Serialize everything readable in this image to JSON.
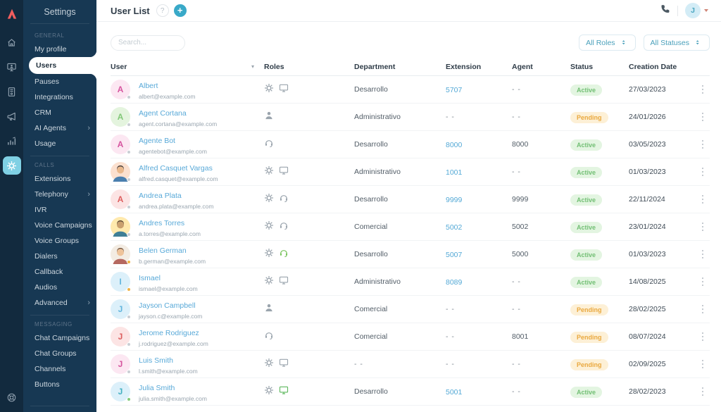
{
  "colors": {
    "accent_teal": "#39a9c8",
    "sidebar_bg": "#173853",
    "rail_bg": "#122a3e",
    "logo_coral": "#f15e5e",
    "link_blue": "#58a9d8",
    "active_badge_bg": "#e3f5e1",
    "active_badge_fg": "#72bf74",
    "pending_badge_bg": "#fdf0d6",
    "pending_badge_fg": "#e9a83e"
  },
  "rail": {
    "items": [
      {
        "icon": "home-icon",
        "active": false
      },
      {
        "icon": "desktop-user-icon",
        "active": false
      },
      {
        "icon": "document-icon",
        "active": false
      },
      {
        "icon": "megaphone-icon",
        "active": false
      },
      {
        "icon": "bar-chart-icon",
        "active": false
      },
      {
        "icon": "gear-icon",
        "active": true
      }
    ],
    "bottom_icon": "life-buoy-icon"
  },
  "sidebar": {
    "title": "Settings",
    "sections": [
      {
        "label": "GENERAL",
        "items": [
          {
            "label": "My profile"
          },
          {
            "label": "Users",
            "active": true
          },
          {
            "label": "Pauses"
          },
          {
            "label": "Integrations"
          },
          {
            "label": "CRM"
          },
          {
            "label": "AI Agents",
            "chevron": true
          },
          {
            "label": "Usage"
          }
        ]
      },
      {
        "label": "CALLS",
        "items": [
          {
            "label": "Extensions"
          },
          {
            "label": "Telephony",
            "chevron": true
          },
          {
            "label": "IVR"
          },
          {
            "label": "Voice Campaigns"
          },
          {
            "label": "Voice Groups"
          },
          {
            "label": "Dialers"
          },
          {
            "label": "Callback"
          },
          {
            "label": "Audios"
          },
          {
            "label": "Advanced",
            "chevron": true
          }
        ]
      },
      {
        "label": "MESSAGING",
        "items": [
          {
            "label": "Chat Campaigns"
          },
          {
            "label": "Chat Groups"
          },
          {
            "label": "Channels"
          },
          {
            "label": "Buttons"
          }
        ]
      }
    ]
  },
  "header": {
    "title": "User List",
    "help_label": "?",
    "add_label": "+",
    "avatar_initial": "J"
  },
  "toolbar": {
    "search_placeholder": "Search...",
    "filters": [
      {
        "label": "All Roles"
      },
      {
        "label": "All Statuses"
      }
    ]
  },
  "table": {
    "columns": [
      "User",
      "Roles",
      "Department",
      "Extension",
      "Agent",
      "Status",
      "Creation Date"
    ],
    "rows": [
      {
        "name": "Albert",
        "email": "albert@example.com",
        "avatar": {
          "type": "initial",
          "initial": "A",
          "bg": "#fce7f2",
          "fg": "#d6559f"
        },
        "dot": "#c9ced4",
        "roles": [
          {
            "icon": "gear",
            "color": "#9aa4ad"
          },
          {
            "icon": "monitor",
            "color": "#9aa4ad"
          }
        ],
        "department": "Desarrollo",
        "extension": "5707",
        "agent": "- -",
        "status": "Active",
        "date": "27/03/2023"
      },
      {
        "name": "Agent Cortana",
        "email": "agent.cortana@example.com",
        "avatar": {
          "type": "initial",
          "initial": "A",
          "bg": "#e4f4de",
          "fg": "#82c878"
        },
        "dot": "#c9ced4",
        "roles": [
          {
            "icon": "person",
            "color": "#9aa4ad"
          }
        ],
        "department": "Administrativo",
        "extension": "- -",
        "agent": "- -",
        "status": "Pending",
        "date": "24/01/2026"
      },
      {
        "name": "Agente Bot",
        "email": "agentebot@example.com",
        "avatar": {
          "type": "initial",
          "initial": "A",
          "bg": "#fce7f2",
          "fg": "#d6559f"
        },
        "dot": "#c9ced4",
        "roles": [
          {
            "icon": "headset",
            "color": "#9aa4ad"
          }
        ],
        "department": "Desarrollo",
        "extension": "8000",
        "agent": "8000",
        "status": "Active",
        "date": "03/05/2023"
      },
      {
        "name": "Alfred Casquet Vargas",
        "email": "alfred.casquet@example.com",
        "avatar": {
          "type": "photo",
          "bg": "#fbe0cf",
          "hair": "#2f2a28",
          "skin": "#eab98d",
          "shirt": "#4a7fae"
        },
        "dot": "#c9ced4",
        "roles": [
          {
            "icon": "gear",
            "color": "#9aa4ad"
          },
          {
            "icon": "monitor",
            "color": "#9aa4ad"
          }
        ],
        "department": "Administrativo",
        "extension": "1001",
        "agent": "- -",
        "status": "Active",
        "date": "01/03/2023"
      },
      {
        "name": "Andrea Plata",
        "email": "andrea.plata@example.com",
        "avatar": {
          "type": "initial",
          "initial": "A",
          "bg": "#fce4e4",
          "fg": "#dd5f5f"
        },
        "dot": "#c9ced4",
        "roles": [
          {
            "icon": "gear",
            "color": "#9aa4ad"
          },
          {
            "icon": "headset",
            "color": "#9aa4ad"
          }
        ],
        "department": "Desarrollo",
        "extension": "9999",
        "agent": "9999",
        "status": "Active",
        "date": "22/11/2024"
      },
      {
        "name": "Andres Torres",
        "email": "a.torres@example.com",
        "avatar": {
          "type": "photo",
          "bg": "#ffe9ad",
          "hair": "#4a3526",
          "skin": "#caa06e",
          "shirt": "#3f7f96"
        },
        "dot": "#c9ced4",
        "roles": [
          {
            "icon": "gear",
            "color": "#9aa4ad"
          },
          {
            "icon": "headset",
            "color": "#9aa4ad"
          }
        ],
        "department": "Comercial",
        "extension": "5002",
        "agent": "5002",
        "status": "Active",
        "date": "23/01/2024"
      },
      {
        "name": "Belen German",
        "email": "b.german@example.com",
        "avatar": {
          "type": "photo",
          "bg": "#f3ece3",
          "hair": "#6b4a33",
          "skin": "#eec39a",
          "shirt": "#b5685f"
        },
        "dot": "#f0b344",
        "roles": [
          {
            "icon": "gear",
            "color": "#9aa4ad"
          },
          {
            "icon": "headset",
            "color": "#77c25b"
          }
        ],
        "department": "Desarrollo",
        "extension": "5007",
        "agent": "5000",
        "status": "Active",
        "date": "01/03/2023"
      },
      {
        "name": "Ismael",
        "email": "ismael@example.com",
        "avatar": {
          "type": "initial",
          "initial": "I",
          "bg": "#dcf0fa",
          "fg": "#63b6dd"
        },
        "dot": "#f0b344",
        "roles": [
          {
            "icon": "gear",
            "color": "#9aa4ad"
          },
          {
            "icon": "monitor",
            "color": "#9aa4ad"
          }
        ],
        "department": "Administrativo",
        "extension": "8089",
        "agent": "- -",
        "status": "Active",
        "date": "14/08/2025"
      },
      {
        "name": "Jayson Campbell",
        "email": "jayson.c@example.com",
        "avatar": {
          "type": "initial",
          "initial": "J",
          "bg": "#dcf0fa",
          "fg": "#63b6dd"
        },
        "dot": "#c9ced4",
        "roles": [
          {
            "icon": "person",
            "color": "#9aa4ad"
          }
        ],
        "department": "Comercial",
        "extension": "- -",
        "agent": "- -",
        "status": "Pending",
        "date": "28/02/2025"
      },
      {
        "name": "Jerome Rodriguez",
        "email": "j.rodriguez@example.com",
        "avatar": {
          "type": "initial",
          "initial": "J",
          "bg": "#fce4e4",
          "fg": "#dd5f5f"
        },
        "dot": "#c9ced4",
        "roles": [
          {
            "icon": "headset",
            "color": "#9aa4ad"
          }
        ],
        "department": "Comercial",
        "extension": "- -",
        "agent": "8001",
        "status": "Pending",
        "date": "08/07/2024"
      },
      {
        "name": "Luis Smith",
        "email": "l.smith@example.com",
        "avatar": {
          "type": "initial",
          "initial": "J",
          "bg": "#fce7f2",
          "fg": "#d6559f"
        },
        "dot": "#c9ced4",
        "roles": [
          {
            "icon": "gear",
            "color": "#9aa4ad"
          },
          {
            "icon": "monitor",
            "color": "#9aa4ad"
          }
        ],
        "department": "- -",
        "extension": "- -",
        "agent": "- -",
        "status": "Pending",
        "date": "02/09/2025"
      },
      {
        "name": "Julia Smith",
        "email": "julia.smith@example.com",
        "avatar": {
          "type": "initial",
          "initial": "J",
          "bg": "#dcf0fa",
          "fg": "#45b0c2"
        },
        "dot": "#84ca7a",
        "roles": [
          {
            "icon": "gear",
            "color": "#9aa4ad"
          },
          {
            "icon": "monitor",
            "color": "#5cb85c"
          }
        ],
        "department": "Desarrollo",
        "extension": "5001",
        "agent": "- -",
        "status": "Active",
        "date": "28/02/2023"
      }
    ]
  }
}
